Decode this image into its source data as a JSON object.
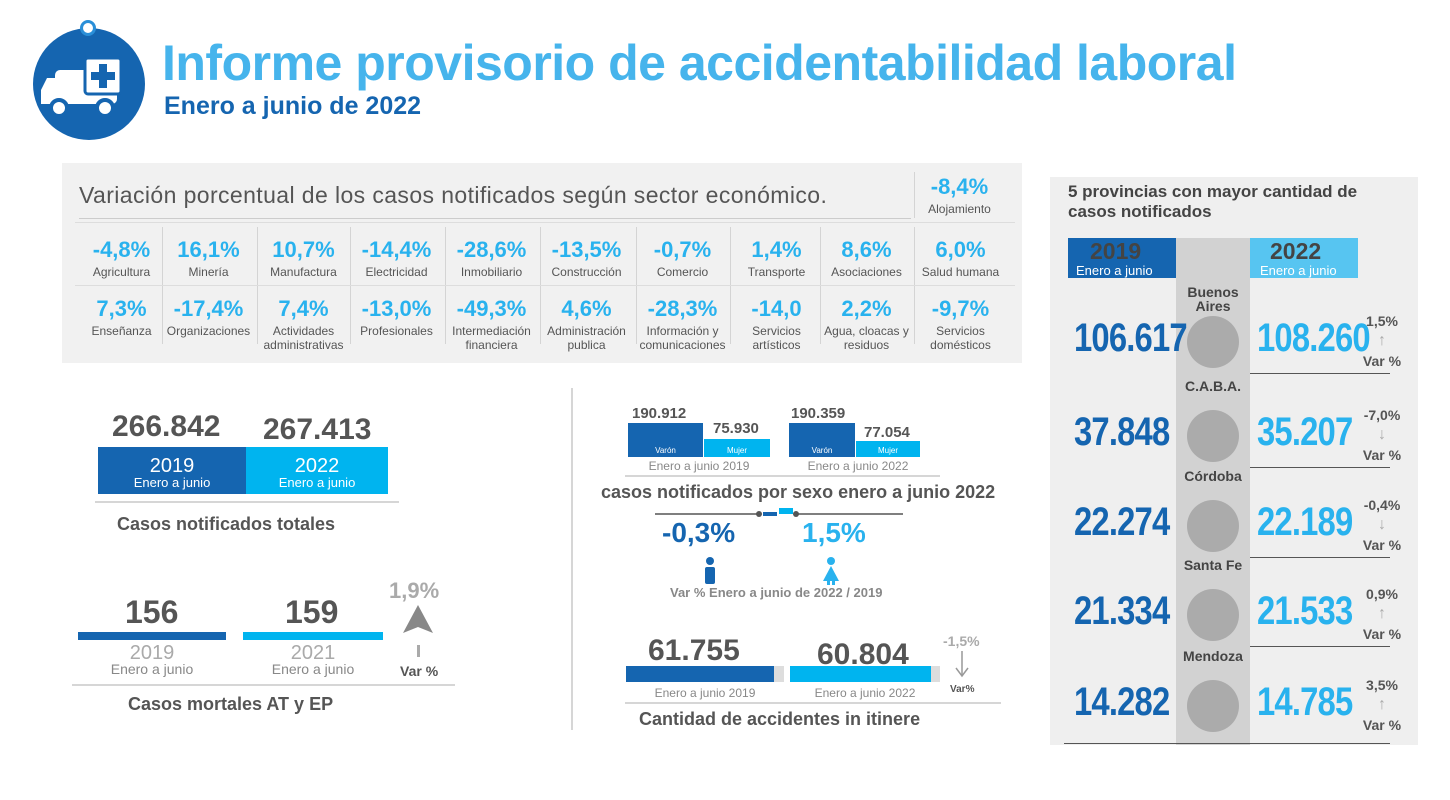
{
  "header": {
    "title": "Informe provisorio de accidentabilidad laboral",
    "subtitle": "Enero a junio de 2022"
  },
  "sectors": {
    "title": "Variación porcentual de los casos notificados según sector económico.",
    "alojamiento": {
      "value": "-8,4%",
      "label": "Alojamiento"
    },
    "row1": [
      {
        "value": "-4,8%",
        "label": "Agricultura"
      },
      {
        "value": "16,1%",
        "label": "Minería"
      },
      {
        "value": "10,7%",
        "label": "Manufactura"
      },
      {
        "value": "-14,4%",
        "label": "Electricidad"
      },
      {
        "value": "-28,6%",
        "label": "Inmobiliario"
      },
      {
        "value": "-13,5%",
        "label": "Construcción"
      },
      {
        "value": "-0,7%",
        "label": "Comercio"
      },
      {
        "value": "1,4%",
        "label": "Transporte"
      },
      {
        "value": "8,6%",
        "label": "Asociaciones"
      },
      {
        "value": "6,0%",
        "label": "Salud humana"
      }
    ],
    "row2": [
      {
        "value": "7,3%",
        "label": "Enseñanza"
      },
      {
        "value": "-17,4%",
        "label": "Organizaciones"
      },
      {
        "value": "7,4%",
        "label": "Actividades administrativas"
      },
      {
        "value": "-13,0%",
        "label": "Profesionales"
      },
      {
        "value": "-49,3%",
        "label": "Intermediación financiera"
      },
      {
        "value": "4,6%",
        "label": "Administración publica"
      },
      {
        "value": "-28,3%",
        "label": "Información y comunicaciones"
      },
      {
        "value": "-14,0",
        "label": "Servicios artísticos"
      },
      {
        "value": "2,2%",
        "label": "Agua, cloacas y residuos"
      },
      {
        "value": "-9,7%",
        "label": "Servicios domésticos"
      }
    ]
  },
  "totals": {
    "v2019": "266.842",
    "v2022": "267.413",
    "y2019": "2019",
    "y2022": "2022",
    "period": "Enero a junio",
    "caption": "Casos notificados totales"
  },
  "mortales": {
    "v2019": "156",
    "v2021": "159",
    "y2019": "2019",
    "y2021": "2021",
    "period": "Enero a junio",
    "var": "1,9%",
    "var_label": "Var %",
    "caption": "Casos mortales AT y EP"
  },
  "sexo": {
    "varon2019": "190.912",
    "mujer2019": "75.930",
    "varon2022": "190.359",
    "mujer2022": "77.054",
    "varon_label": "Varón",
    "mujer_label": "Mujer",
    "period2019": "Enero a junio 2019",
    "period2022": "Enero a junio 2022",
    "caption": "casos notificados por sexo  enero a junio 2022",
    "var_varon": "-0,3%",
    "var_mujer": "1,5%",
    "var_caption": "Var % Enero a junio de 2022 / 2019"
  },
  "itinere": {
    "v2019": "61.755",
    "v2022": "60.804",
    "period2019": "Enero a junio 2019",
    "period2022": "Enero a junio 2022",
    "var": "-1,5%",
    "var_label": "Var%",
    "caption": "Cantidad de accidentes in itinere"
  },
  "provincias": {
    "title": "5 provincias con mayor cantidad de casos notificados",
    "y2019": "2019",
    "y2022": "2022",
    "period": "Enero a junio",
    "var_label": "Var %",
    "items": [
      {
        "name": "Buenos Aires",
        "v2019": "106.617",
        "v2022": "108.260",
        "var": "1,5%",
        "dir": "↑"
      },
      {
        "name": "C.A.B.A.",
        "v2019": "37.848",
        "v2022": "35.207",
        "var": "-7,0%",
        "dir": "↓"
      },
      {
        "name": "Córdoba",
        "v2019": "22.274",
        "v2022": "22.189",
        "var": "-0,4%",
        "dir": "↓"
      },
      {
        "name": "Santa Fe",
        "v2019": "21.334",
        "v2022": "21.533",
        "var": "0,9%",
        "dir": "↑"
      },
      {
        "name": "Mendoza",
        "v2019": "14.282",
        "v2022": "14.785",
        "var": "3,5%",
        "dir": "↑"
      }
    ]
  },
  "colors": {
    "dark_blue": "#1565b0",
    "light_blue": "#00b4ef",
    "title_blue": "#46b4ec"
  }
}
